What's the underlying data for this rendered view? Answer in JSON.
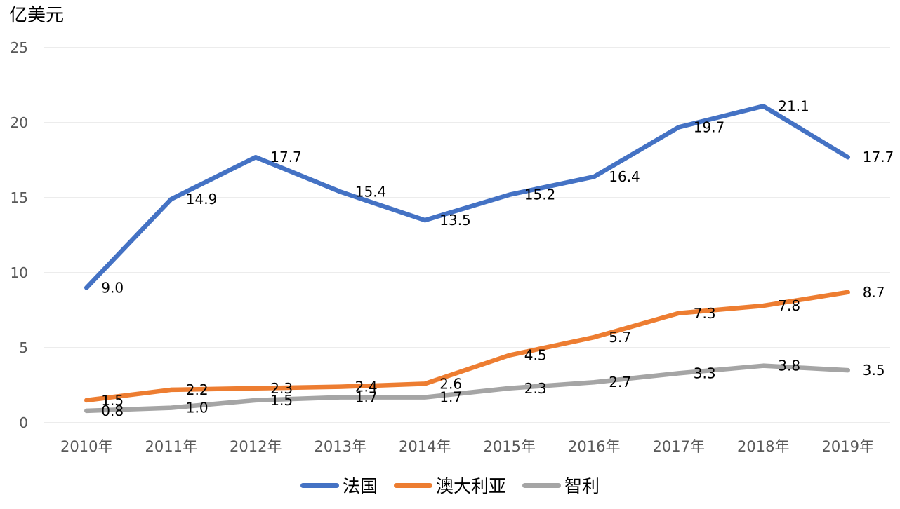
{
  "chart": {
    "title": "亿美元"
  },
  "chart_data": {
    "type": "line",
    "title": "亿美元",
    "xlabel": "",
    "ylabel": "亿美元",
    "categories": [
      "2010年",
      "2011年",
      "2012年",
      "2013年",
      "2014年",
      "2015年",
      "2016年",
      "2017年",
      "2018年",
      "2019年"
    ],
    "series": [
      {
        "name": "法国",
        "color": "#4472C4",
        "values": [
          9.0,
          14.9,
          17.7,
          15.4,
          13.5,
          15.2,
          16.4,
          19.7,
          21.1,
          17.7
        ]
      },
      {
        "name": "澳大利亚",
        "color": "#ED7D31",
        "values": [
          1.5,
          2.2,
          2.3,
          2.4,
          2.6,
          4.5,
          5.7,
          7.3,
          7.8,
          8.7
        ]
      },
      {
        "name": "智利",
        "color": "#A5A5A5",
        "values": [
          0.8,
          1.0,
          1.5,
          1.7,
          1.7,
          2.3,
          2.7,
          3.3,
          3.8,
          3.5
        ]
      }
    ],
    "ylim": [
      0,
      25
    ],
    "yticks": [
      0,
      5,
      10,
      15,
      20,
      25
    ],
    "grid": true,
    "data_labels": true,
    "legend_position": "bottom"
  },
  "style": {
    "gridline_color": "#D9D9D9",
    "axis_label_color": "#595959",
    "data_label_color": "#000000",
    "background_color": "#FFFFFF"
  }
}
